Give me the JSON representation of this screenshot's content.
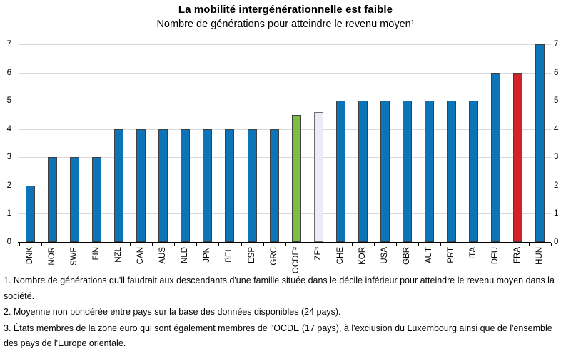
{
  "chart_data": {
    "type": "bar",
    "title": "La mobilité intergénérationnelle est faible",
    "subtitle": "Nombre de générations pour atteindre le revenu moyen¹",
    "xlabel": "",
    "ylabel": "",
    "ylim": [
      0,
      7
    ],
    "yticks": [
      0,
      1,
      2,
      3,
      4,
      5,
      6,
      7
    ],
    "grid": true,
    "dual_value_axes": true,
    "legend": "none",
    "categories": [
      "DNK",
      "NOR",
      "SWE",
      "FIN",
      "NZL",
      "CAN",
      "AUS",
      "NLD",
      "JPN",
      "BEL",
      "ESP",
      "GRC",
      "OCDE²",
      "ZE³",
      "CHE",
      "KOR",
      "USA",
      "GBR",
      "AUT",
      "PRT",
      "ITA",
      "DEU",
      "FRA",
      "HUN"
    ],
    "values": [
      2,
      3,
      3,
      3,
      4,
      4,
      4,
      4,
      4,
      4,
      4,
      4,
      4.5,
      4.6,
      5,
      5,
      5,
      5,
      5,
      5,
      5,
      6,
      6,
      7
    ],
    "bar_color_keys": [
      "default",
      "default",
      "default",
      "default",
      "default",
      "default",
      "default",
      "default",
      "default",
      "default",
      "default",
      "default",
      "ocde",
      "ze",
      "default",
      "default",
      "default",
      "default",
      "default",
      "default",
      "default",
      "default",
      "fra",
      "default"
    ],
    "palette": {
      "default": "#0d74b8",
      "ocde": "#7dbe42",
      "ze": "#eaedf5",
      "fra": "#d2232c"
    },
    "border_colors": {
      "default": "#404040",
      "ze": "#6e6e6e"
    },
    "gridline_color": "#d9d9d9",
    "axis_color": "#000000"
  },
  "footnotes": [
    "1. Nombre de générations qu'il faudrait aux descendants d'une famille située dans le décile inférieur pour atteindre le revenu moyen dans la société.",
    "2. Moyenne non pondérée entre pays sur la base des données disponibles (24 pays).",
    "3. États membres de la zone euro qui sont également membres de l'OCDE (17 pays), à l'exclusion du Luxembourg ainsi que de l'ensemble des pays de l'Europe orientale."
  ]
}
